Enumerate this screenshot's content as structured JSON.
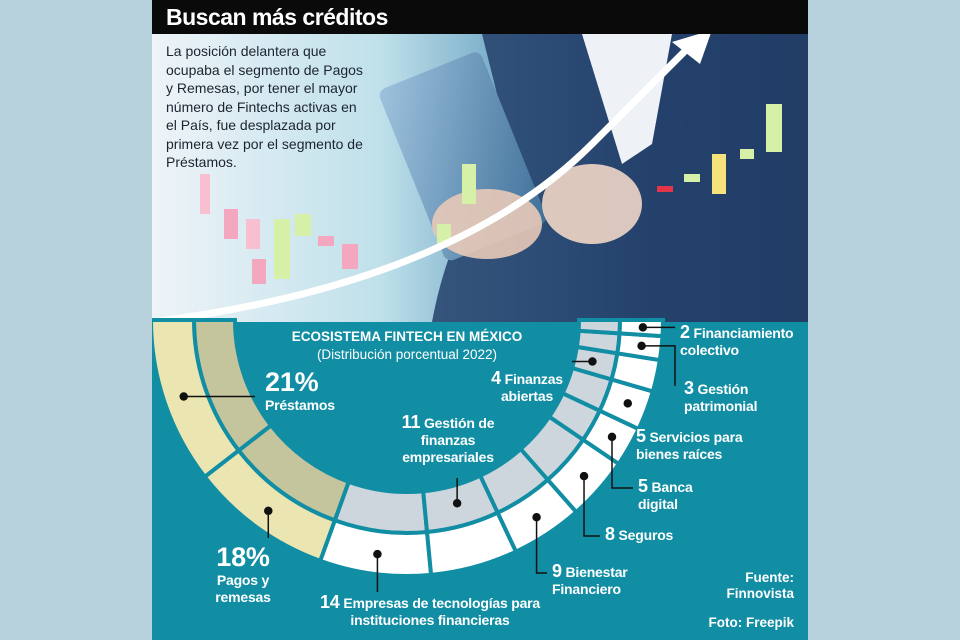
{
  "header": {
    "title": "Buscan más créditos"
  },
  "intro": "La posición delantera que ocupaba el segmento de Pagos y Remesas, por tener el mayor número de Fintechs activas en el País, fue desplazada por primera vez por el segmento de Préstamos.",
  "colors": {
    "background": "#118ea4",
    "highlight_outer": "#ebe5b1",
    "highlight_inner": "#c4c49d",
    "other_outer": "#ffffff",
    "other_inner": "#cdd6dc",
    "header": "#0a0a0a"
  },
  "chart_data": {
    "type": "pie",
    "variant": "semicircular-donut",
    "title": "ECOSISTEMA FINTECH EN MÉXICO",
    "subtitle": "(Distribución porcentual 2022)",
    "unit": "%",
    "slices": [
      {
        "value": 21,
        "value_label": "21%",
        "label": "Préstamos",
        "highlight": true
      },
      {
        "value": 18,
        "value_label": "18%",
        "label": "Pagos y remesas",
        "highlight": true
      },
      {
        "value": 14,
        "value_label": "14",
        "label": "Empresas de tecnologías para instituciones financieras",
        "highlight": false
      },
      {
        "value": 11,
        "value_label": "11",
        "label": "Gestión de finanzas empresariales",
        "highlight": false
      },
      {
        "value": 9,
        "value_label": "9",
        "label": "Bienestar Financiero",
        "highlight": false
      },
      {
        "value": 8,
        "value_label": "8",
        "label": "Seguros",
        "highlight": false
      },
      {
        "value": 5,
        "value_label": "5",
        "label": "Banca digital",
        "highlight": false
      },
      {
        "value": 5,
        "value_label": "5",
        "label": "Servicios para bienes raíces",
        "highlight": false
      },
      {
        "value": 4,
        "value_label": "4",
        "label": "Finanzas abiertas",
        "highlight": false
      },
      {
        "value": 3,
        "value_label": "3",
        "label": "Gestión patrimonial",
        "highlight": false
      },
      {
        "value": 2,
        "value_label": "2",
        "label": "Financiamiento colectivo",
        "highlight": false
      }
    ]
  },
  "source": {
    "label": "Fuente:",
    "name": "Finnovista",
    "photo": "Foto: Freepik"
  }
}
